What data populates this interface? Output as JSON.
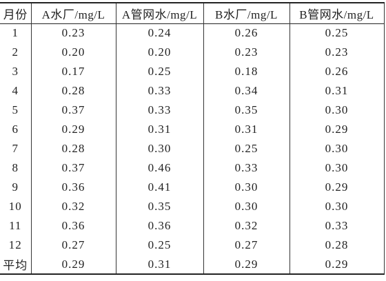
{
  "table": {
    "header": [
      "月份",
      "A水厂/mg/L",
      "A管网水/mg/L",
      "B水厂/mg/L",
      "B管网水/mg/L"
    ],
    "rows": [
      [
        "1",
        "0.23",
        "0.24",
        "0.26",
        "0.25"
      ],
      [
        "2",
        "0.20",
        "0.20",
        "0.23",
        "0.23"
      ],
      [
        "3",
        "0.17",
        "0.25",
        "0.18",
        "0.26"
      ],
      [
        "4",
        "0.28",
        "0.33",
        "0.34",
        "0.31"
      ],
      [
        "5",
        "0.37",
        "0.33",
        "0.35",
        "0.30"
      ],
      [
        "6",
        "0.29",
        "0.31",
        "0.31",
        "0.29"
      ],
      [
        "7",
        "0.28",
        "0.30",
        "0.25",
        "0.30"
      ],
      [
        "8",
        "0.37",
        "0.46",
        "0.33",
        "0.30"
      ],
      [
        "9",
        "0.36",
        "0.41",
        "0.30",
        "0.29"
      ],
      [
        "10",
        "0.32",
        "0.35",
        "0.30",
        "0.30"
      ],
      [
        "11",
        "0.36",
        "0.36",
        "0.32",
        "0.33"
      ],
      [
        "12",
        "0.27",
        "0.25",
        "0.27",
        "0.28"
      ],
      [
        "平均",
        "0.29",
        "0.31",
        "0.29",
        "0.29"
      ]
    ]
  }
}
